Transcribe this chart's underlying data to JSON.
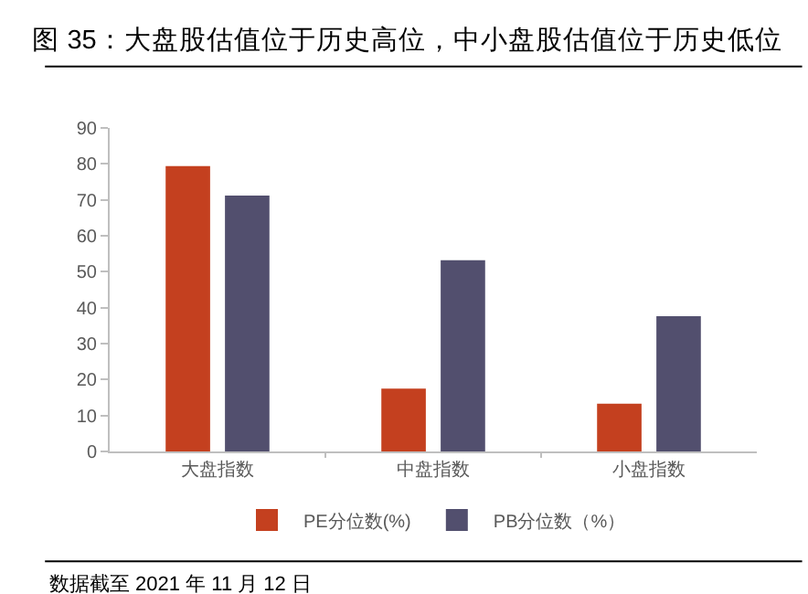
{
  "chart_data": {
    "type": "bar",
    "title": "图 35：大盘股估值位于历史高位，中小盘股估值位于历史低位",
    "categories": [
      "大盘指数",
      "中盘指数",
      "小盘指数"
    ],
    "series": [
      {
        "name": "PE分位数(%)",
        "color": "#c4401f",
        "values": [
          79.4,
          17.5,
          13.3
        ]
      },
      {
        "name": "PB分位数（%）",
        "color": "#524f6e",
        "values": [
          71.2,
          53.2,
          37.6
        ]
      }
    ],
    "ylim": [
      0,
      90
    ],
    "yticks": [
      0,
      10,
      20,
      30,
      40,
      50,
      60,
      70,
      80,
      90
    ],
    "grid": false,
    "legend": "bottom",
    "annotations": [
      "数据截至 2021 年 11 月 12 日"
    ]
  }
}
